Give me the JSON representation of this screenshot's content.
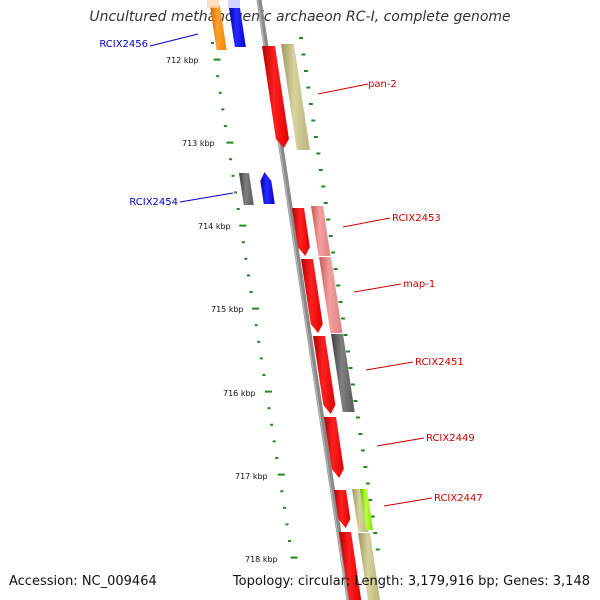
{
  "title": "Uncultured methanogenic archaeon RC-I, complete genome",
  "footer": {
    "accession": "Accession: NC_009464",
    "summary": "Topology: circular; Length: 3,179,916 bp; Genes: 3,148"
  },
  "colors": {
    "red": "#ff1010",
    "pink": "#ee8080",
    "khaki": "#c9c38a",
    "gray": "#666666",
    "blue": "#1010ee",
    "orange": "#ff8800",
    "green": "#99ee22",
    "tick": "#1f8a1f",
    "label_red": "#cc0000",
    "label_blue": "#0000bb"
  },
  "scale_labels": [
    "712 kbp",
    "713 kbp",
    "714 kbp",
    "715 kbp",
    "716 kbp",
    "717 kbp",
    "718 kbp"
  ],
  "gene_labels": [
    {
      "text": "RCIX2456",
      "color": "blue"
    },
    {
      "text": "pan-2",
      "color": "red"
    },
    {
      "text": "RCIX2454",
      "color": "blue"
    },
    {
      "text": "RCIX2453",
      "color": "red"
    },
    {
      "text": "map-1",
      "color": "red"
    },
    {
      "text": "RCIX2451",
      "color": "red"
    },
    {
      "text": "RCIX2449",
      "color": "red"
    },
    {
      "text": "RCIX2447",
      "color": "red"
    }
  ]
}
